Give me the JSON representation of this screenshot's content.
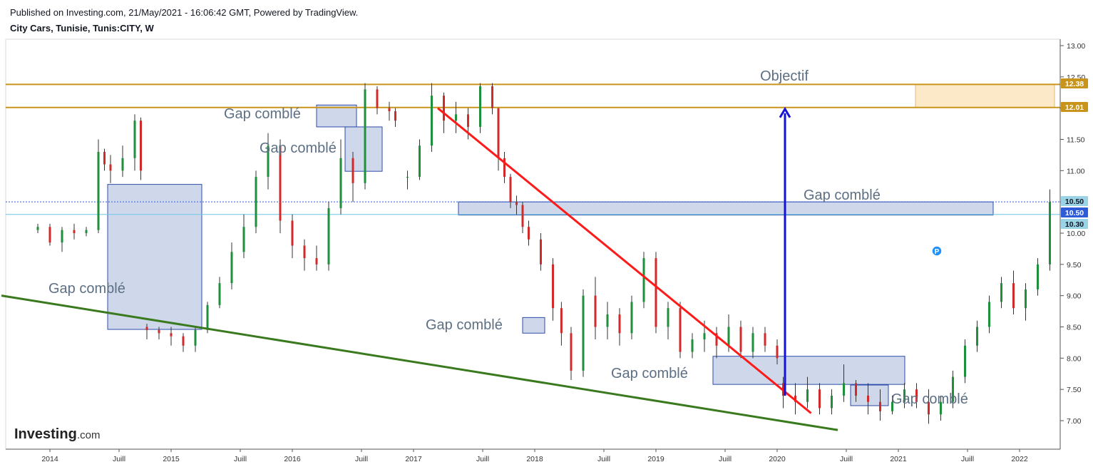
{
  "header": {
    "published": "Published on Investing.com, 21/May/2021 - 16:06:42 GMT, Powered by TradingView.",
    "symbol": "City Cars, Tunisie, Tunis:CITY, W"
  },
  "logo": {
    "brand": "Investing",
    "suffix": ".com"
  },
  "chart_data": {
    "type": "candlestick",
    "timeframe": "W",
    "ylim": [
      6.65,
      13.05
    ],
    "y_ticks": [
      "13.00",
      "12.50",
      "12.00",
      "11.50",
      "11.00",
      "10.50",
      "10.00",
      "9.50",
      "9.00",
      "8.50",
      "8.00",
      "7.50",
      "7.00"
    ],
    "x_ticks": [
      "2014",
      "Juill",
      "2015",
      "Juill",
      "2016",
      "Juill",
      "2017",
      "Juill",
      "2018",
      "Juill",
      "2019",
      "Juill",
      "2020",
      "Juill",
      "2021",
      "Juill",
      "2022"
    ],
    "price_tags": [
      {
        "value": 12.38,
        "label": "12.38",
        "bg": "#c8941c",
        "fg": "#ffffff"
      },
      {
        "value": 12.01,
        "label": "12.01",
        "bg": "#c8941c",
        "fg": "#ffffff"
      },
      {
        "value": 10.5,
        "label": "10.50",
        "bg": "#9bd3e6",
        "fg": "#131722"
      },
      {
        "value": 10.5,
        "label": "10.50",
        "bg": "#2e5bd8",
        "fg": "#ffffff"
      },
      {
        "value": 10.3,
        "label": "10.30",
        "bg": "#9bd3e6",
        "fg": "#131722"
      }
    ],
    "horizontal_levels": [
      {
        "value": 12.38,
        "color": "#c8941c"
      },
      {
        "value": 12.01,
        "color": "#c8941c"
      }
    ],
    "target_label": "Objectif",
    "gap_labels": [
      "Gap comblé",
      "Gap comblé",
      "Gap comblé",
      "Gap comblé",
      "Gap comblé",
      "Gap comblé",
      "Gap comblé"
    ],
    "gap_zones": [
      [
        10.78,
        8.46
      ],
      [
        12.05,
        11.7
      ],
      [
        11.7,
        10.99
      ],
      [
        10.5,
        10.29
      ],
      [
        8.65,
        8.4
      ],
      [
        8.03,
        7.58
      ],
      [
        7.57,
        7.24
      ]
    ],
    "trendlines": [
      {
        "name": "resistance",
        "color": "#ff1a1a",
        "from": [
          2017.2,
          12.0
        ],
        "to": [
          2020.28,
          7.12
        ]
      },
      {
        "name": "support",
        "color": "#3a7a1e",
        "from": [
          2013.6,
          9.0
        ],
        "to": [
          2020.5,
          6.85
        ]
      }
    ],
    "ohlc": [
      [
        2013.9,
        10.05,
        10.15,
        10.0,
        10.1
      ],
      [
        2014.0,
        10.1,
        10.15,
        9.8,
        9.85
      ],
      [
        2014.1,
        9.85,
        10.1,
        9.7,
        10.05
      ],
      [
        2014.2,
        10.05,
        10.15,
        9.9,
        10.0
      ],
      [
        2014.3,
        10.0,
        10.1,
        9.95,
        10.05
      ],
      [
        2014.4,
        10.05,
        11.5,
        10.0,
        11.3
      ],
      [
        2014.45,
        11.3,
        11.35,
        11.0,
        11.1
      ],
      [
        2014.5,
        11.1,
        11.25,
        10.8,
        11.0
      ],
      [
        2014.6,
        11.0,
        11.4,
        10.9,
        11.2
      ],
      [
        2014.7,
        11.2,
        11.9,
        11.0,
        11.8
      ],
      [
        2014.75,
        11.8,
        11.85,
        10.85,
        11.0
      ],
      [
        2014.8,
        8.5,
        8.55,
        8.3,
        8.45
      ],
      [
        2014.9,
        8.45,
        8.5,
        8.3,
        8.4
      ],
      [
        2015.0,
        8.4,
        8.5,
        8.2,
        8.35
      ],
      [
        2015.1,
        8.35,
        8.4,
        8.1,
        8.2
      ],
      [
        2015.2,
        8.2,
        8.5,
        8.1,
        8.45
      ],
      [
        2015.3,
        8.45,
        8.9,
        8.4,
        8.85
      ],
      [
        2015.4,
        8.85,
        9.3,
        8.8,
        9.2
      ],
      [
        2015.5,
        9.2,
        9.85,
        9.1,
        9.7
      ],
      [
        2015.6,
        9.7,
        10.3,
        9.6,
        10.1
      ],
      [
        2015.7,
        10.1,
        11.0,
        10.0,
        10.9
      ],
      [
        2015.8,
        10.9,
        11.6,
        10.7,
        11.4
      ],
      [
        2015.9,
        11.4,
        11.5,
        10.0,
        10.2
      ],
      [
        2016.0,
        10.2,
        10.3,
        9.6,
        9.8
      ],
      [
        2016.1,
        9.8,
        9.9,
        9.4,
        9.6
      ],
      [
        2016.2,
        9.6,
        9.8,
        9.4,
        9.5
      ],
      [
        2016.3,
        9.5,
        10.5,
        9.4,
        10.4
      ],
      [
        2016.4,
        10.4,
        11.5,
        10.3,
        11.2
      ],
      [
        2016.5,
        11.2,
        11.3,
        10.5,
        10.8
      ],
      [
        2016.6,
        10.8,
        12.4,
        10.7,
        12.3
      ],
      [
        2016.7,
        12.3,
        12.35,
        11.9,
        12.0
      ],
      [
        2016.8,
        12.0,
        12.1,
        11.8,
        11.95
      ],
      [
        2016.85,
        11.95,
        12.0,
        11.7,
        11.8
      ],
      [
        2016.95,
        10.9,
        11.0,
        10.7,
        10.9
      ],
      [
        2017.05,
        10.9,
        11.5,
        10.85,
        11.4
      ],
      [
        2017.15,
        11.4,
        12.4,
        11.3,
        12.2
      ],
      [
        2017.25,
        12.2,
        12.25,
        11.6,
        11.8
      ],
      [
        2017.35,
        11.8,
        12.1,
        11.6,
        11.9
      ],
      [
        2017.45,
        11.9,
        12.0,
        11.5,
        11.7
      ],
      [
        2017.55,
        11.7,
        12.4,
        11.6,
        12.35
      ],
      [
        2017.65,
        12.35,
        12.4,
        11.9,
        12.0
      ],
      [
        2017.7,
        12.0,
        12.0,
        11.0,
        11.2
      ],
      [
        2017.75,
        11.2,
        11.3,
        10.8,
        10.9
      ],
      [
        2017.8,
        10.9,
        10.95,
        10.4,
        10.5
      ],
      [
        2017.85,
        10.5,
        10.6,
        10.3,
        10.45
      ],
      [
        2017.9,
        10.45,
        10.5,
        10.0,
        10.1
      ],
      [
        2017.95,
        10.1,
        10.2,
        9.8,
        9.9
      ],
      [
        2018.05,
        9.9,
        10.0,
        9.4,
        9.5
      ],
      [
        2018.15,
        9.5,
        9.6,
        8.6,
        8.8
      ],
      [
        2018.22,
        8.8,
        8.9,
        8.2,
        8.4
      ],
      [
        2018.3,
        8.4,
        8.5,
        7.65,
        7.8
      ],
      [
        2018.4,
        7.8,
        9.1,
        7.7,
        9.0
      ],
      [
        2018.5,
        9.0,
        9.3,
        8.3,
        8.5
      ],
      [
        2018.6,
        8.5,
        8.9,
        8.3,
        8.7
      ],
      [
        2018.7,
        8.7,
        8.8,
        8.2,
        8.4
      ],
      [
        2018.8,
        8.4,
        9.0,
        8.3,
        8.9
      ],
      [
        2018.9,
        8.9,
        9.7,
        8.8,
        9.6
      ],
      [
        2019.0,
        9.6,
        9.7,
        8.4,
        8.5
      ],
      [
        2019.1,
        8.5,
        8.9,
        8.3,
        8.8
      ],
      [
        2019.2,
        8.8,
        8.9,
        8.0,
        8.1
      ],
      [
        2019.3,
        8.1,
        8.4,
        8.0,
        8.3
      ],
      [
        2019.4,
        8.3,
        8.6,
        8.1,
        8.4
      ],
      [
        2019.5,
        8.4,
        8.5,
        8.0,
        8.2
      ],
      [
        2019.6,
        8.2,
        8.7,
        8.1,
        8.5
      ],
      [
        2019.7,
        8.5,
        8.6,
        8.0,
        8.1
      ],
      [
        2019.8,
        8.1,
        8.5,
        8.0,
        8.4
      ],
      [
        2019.9,
        8.4,
        8.5,
        8.1,
        8.2
      ],
      [
        2020.0,
        8.2,
        8.3,
        7.9,
        8.0
      ],
      [
        2020.05,
        7.6,
        7.7,
        7.2,
        7.4
      ],
      [
        2020.15,
        7.4,
        7.6,
        7.1,
        7.3
      ],
      [
        2020.25,
        7.3,
        7.7,
        7.2,
        7.5
      ],
      [
        2020.35,
        7.5,
        7.6,
        7.1,
        7.2
      ],
      [
        2020.45,
        7.2,
        7.5,
        7.1,
        7.4
      ],
      [
        2020.55,
        7.4,
        7.9,
        7.3,
        7.6
      ],
      [
        2020.65,
        7.6,
        7.65,
        7.3,
        7.4
      ],
      [
        2020.75,
        7.4,
        7.6,
        7.1,
        7.3
      ],
      [
        2020.85,
        7.3,
        7.5,
        7.0,
        7.15
      ],
      [
        2020.95,
        7.15,
        7.4,
        7.1,
        7.3
      ],
      [
        2021.05,
        7.3,
        7.6,
        7.2,
        7.5
      ],
      [
        2021.15,
        7.5,
        7.6,
        7.2,
        7.3
      ],
      [
        2021.25,
        7.3,
        7.5,
        6.95,
        7.1
      ],
      [
        2021.35,
        7.1,
        7.4,
        7.0,
        7.3
      ],
      [
        2021.45,
        7.3,
        7.8,
        7.2,
        7.7
      ],
      [
        2021.55,
        7.7,
        8.3,
        7.6,
        8.2
      ],
      [
        2021.65,
        8.2,
        8.6,
        8.1,
        8.5
      ],
      [
        2021.75,
        8.5,
        9.0,
        8.4,
        8.9
      ],
      [
        2021.85,
        8.9,
        9.3,
        8.8,
        9.2
      ],
      [
        2021.95,
        9.2,
        9.4,
        8.7,
        8.8
      ],
      [
        2022.05,
        8.8,
        9.2,
        8.6,
        9.1
      ],
      [
        2022.15,
        9.1,
        9.6,
        9.0,
        9.5
      ],
      [
        2022.25,
        9.5,
        10.7,
        9.4,
        10.5
      ]
    ]
  }
}
